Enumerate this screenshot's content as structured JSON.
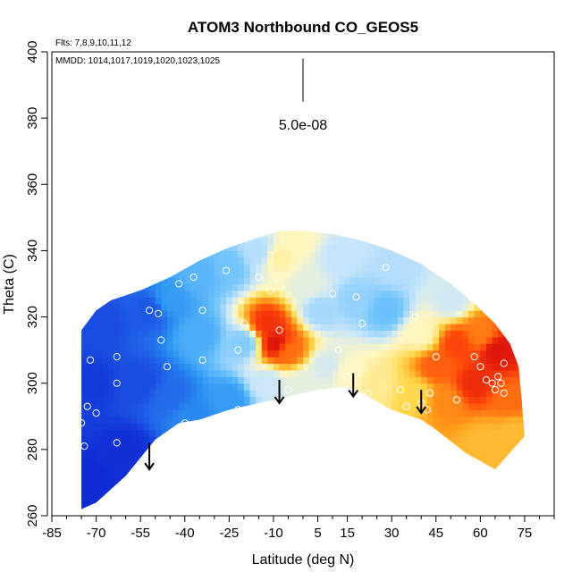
{
  "chart_data": {
    "type": "heatmap",
    "title": "ATOM3 Northbound CO_GEOS5",
    "flights_note": "Flts: 7,8,9,10,11,12",
    "dates_note": "MMDD: 1014,1017,1019,1020,1023,1025",
    "xlabel": "Latitude (deg N)",
    "ylabel": "Theta (C)",
    "xlim": [
      -85,
      85
    ],
    "ylim": [
      260,
      400
    ],
    "xticks": [
      -85,
      -70,
      -55,
      -40,
      -25,
      -10,
      5,
      15,
      30,
      45,
      60,
      75
    ],
    "xtick_labels": [
      "-85",
      "-70",
      "-55",
      "-40",
      "-25",
      "-10",
      "5",
      "15",
      "30",
      "45",
      "60",
      "75"
    ],
    "yticks": [
      260,
      280,
      300,
      320,
      340,
      360,
      380,
      400
    ],
    "ytick_labels": [
      "260",
      "280",
      "300",
      "320",
      "340",
      "360",
      "380",
      "400"
    ],
    "scale_label": "5.0e-08",
    "colormap": [
      "#0b1fcf",
      "#1f5de6",
      "#2b94f2",
      "#6cc2fb",
      "#c8e6fb",
      "#fff7c2",
      "#ffd64a",
      "#ff9a1a",
      "#ff4a0a",
      "#d80a0a"
    ],
    "color_value_range": [
      0,
      1
    ],
    "grid": false,
    "region_top": [
      [
        -75,
        316
      ],
      [
        -70,
        322
      ],
      [
        -65,
        325
      ],
      [
        -55,
        328
      ],
      [
        -45,
        332
      ],
      [
        -35,
        337
      ],
      [
        -25,
        341
      ],
      [
        -15,
        344
      ],
      [
        -8,
        346
      ],
      [
        0,
        346
      ],
      [
        10,
        345
      ],
      [
        20,
        343
      ],
      [
        30,
        340
      ],
      [
        40,
        336
      ],
      [
        50,
        330
      ],
      [
        58,
        324
      ],
      [
        65,
        318
      ],
      [
        70,
        312
      ],
      [
        73,
        305
      ],
      [
        74,
        295
      ],
      [
        75,
        284
      ]
    ],
    "region_bottom": [
      [
        75,
        284
      ],
      [
        70,
        279
      ],
      [
        65,
        274
      ],
      [
        55,
        279
      ],
      [
        45,
        286
      ],
      [
        40,
        289
      ],
      [
        30,
        292
      ],
      [
        20,
        297
      ],
      [
        15,
        299
      ],
      [
        5,
        298
      ],
      [
        -5,
        296
      ],
      [
        -15,
        294
      ],
      [
        -25,
        292
      ],
      [
        -35,
        289
      ],
      [
        -42,
        288
      ],
      [
        -50,
        283
      ],
      [
        -60,
        272
      ],
      [
        -70,
        264
      ],
      [
        -75,
        262
      ]
    ],
    "field_anchors": [
      {
        "lat": -74,
        "theta": 270,
        "value": 0.02
      },
      {
        "lat": -72,
        "theta": 300,
        "value": 0.05
      },
      {
        "lat": -68,
        "theta": 318,
        "value": 0.08
      },
      {
        "lat": -60,
        "theta": 280,
        "value": 0.03
      },
      {
        "lat": -55,
        "theta": 300,
        "value": 0.08
      },
      {
        "lat": -52,
        "theta": 322,
        "value": 0.1
      },
      {
        "lat": -45,
        "theta": 296,
        "value": 0.14
      },
      {
        "lat": -45,
        "theta": 325,
        "value": 0.24
      },
      {
        "lat": -38,
        "theta": 290,
        "value": 0.2
      },
      {
        "lat": -35,
        "theta": 315,
        "value": 0.28
      },
      {
        "lat": -35,
        "theta": 333,
        "value": 0.3
      },
      {
        "lat": -25,
        "theta": 295,
        "value": 0.24
      },
      {
        "lat": -25,
        "theta": 335,
        "value": 0.34
      },
      {
        "lat": -20,
        "theta": 312,
        "value": 0.36
      },
      {
        "lat": -15,
        "theta": 340,
        "value": 0.42
      },
      {
        "lat": -12,
        "theta": 300,
        "value": 0.45
      },
      {
        "lat": -12,
        "theta": 318,
        "value": 0.93
      },
      {
        "lat": -9,
        "theta": 312,
        "value": 0.98
      },
      {
        "lat": -5,
        "theta": 310,
        "value": 0.84
      },
      {
        "lat": -8,
        "theta": 338,
        "value": 0.58
      },
      {
        "lat": -2,
        "theta": 343,
        "value": 0.56
      },
      {
        "lat": 2,
        "theta": 330,
        "value": 0.5
      },
      {
        "lat": 0,
        "theta": 300,
        "value": 0.5
      },
      {
        "lat": 6,
        "theta": 322,
        "value": 0.4
      },
      {
        "lat": 8,
        "theta": 305,
        "value": 0.47
      },
      {
        "lat": 12,
        "theta": 338,
        "value": 0.44
      },
      {
        "lat": 15,
        "theta": 303,
        "value": 0.55
      },
      {
        "lat": 18,
        "theta": 325,
        "value": 0.38
      },
      {
        "lat": 25,
        "theta": 300,
        "value": 0.6
      },
      {
        "lat": 28,
        "theta": 322,
        "value": 0.33
      },
      {
        "lat": 32,
        "theta": 335,
        "value": 0.42
      },
      {
        "lat": 38,
        "theta": 297,
        "value": 0.66
      },
      {
        "lat": 40,
        "theta": 315,
        "value": 0.56
      },
      {
        "lat": 45,
        "theta": 305,
        "value": 0.86
      },
      {
        "lat": 48,
        "theta": 295,
        "value": 0.8
      },
      {
        "lat": 50,
        "theta": 325,
        "value": 0.46
      },
      {
        "lat": 52,
        "theta": 312,
        "value": 0.9
      },
      {
        "lat": 58,
        "theta": 300,
        "value": 0.94
      },
      {
        "lat": 60,
        "theta": 315,
        "value": 0.82
      },
      {
        "lat": 62,
        "theta": 282,
        "value": 0.72
      },
      {
        "lat": 66,
        "theta": 310,
        "value": 0.98
      },
      {
        "lat": 70,
        "theta": 295,
        "value": 0.84
      },
      {
        "lat": 72,
        "theta": 285,
        "value": 0.72
      }
    ],
    "observations": [
      {
        "lat": -75,
        "theta": 288
      },
      {
        "lat": -74,
        "theta": 281
      },
      {
        "lat": -73,
        "theta": 293
      },
      {
        "lat": -72,
        "theta": 307
      },
      {
        "lat": -70,
        "theta": 325
      },
      {
        "lat": -70,
        "theta": 291
      },
      {
        "lat": -63,
        "theta": 282
      },
      {
        "lat": -63,
        "theta": 300
      },
      {
        "lat": -63,
        "theta": 308
      },
      {
        "lat": -52,
        "theta": 322
      },
      {
        "lat": -49,
        "theta": 321
      },
      {
        "lat": -48,
        "theta": 313
      },
      {
        "lat": -46,
        "theta": 305
      },
      {
        "lat": -42,
        "theta": 330
      },
      {
        "lat": -40,
        "theta": 288
      },
      {
        "lat": -37,
        "theta": 332
      },
      {
        "lat": -34,
        "theta": 287
      },
      {
        "lat": -34,
        "theta": 322
      },
      {
        "lat": -34,
        "theta": 307
      },
      {
        "lat": -26,
        "theta": 334
      },
      {
        "lat": -22,
        "theta": 292
      },
      {
        "lat": -22,
        "theta": 310
      },
      {
        "lat": -20,
        "theta": 318
      },
      {
        "lat": -15,
        "theta": 332
      },
      {
        "lat": -11,
        "theta": 328
      },
      {
        "lat": -8,
        "theta": 316
      },
      {
        "lat": -5,
        "theta": 298
      },
      {
        "lat": 10,
        "theta": 327
      },
      {
        "lat": 12,
        "theta": 310
      },
      {
        "lat": 15,
        "theta": 302
      },
      {
        "lat": 18,
        "theta": 326
      },
      {
        "lat": 20,
        "theta": 318
      },
      {
        "lat": 22,
        "theta": 297
      },
      {
        "lat": 28,
        "theta": 335
      },
      {
        "lat": 33,
        "theta": 298
      },
      {
        "lat": 35,
        "theta": 293
      },
      {
        "lat": 38,
        "theta": 320
      },
      {
        "lat": 40,
        "theta": 294
      },
      {
        "lat": 42,
        "theta": 292
      },
      {
        "lat": 43,
        "theta": 297
      },
      {
        "lat": 45,
        "theta": 308
      },
      {
        "lat": 52,
        "theta": 295
      },
      {
        "lat": 58,
        "theta": 308
      },
      {
        "lat": 60,
        "theta": 305
      },
      {
        "lat": 62,
        "theta": 301
      },
      {
        "lat": 64,
        "theta": 300
      },
      {
        "lat": 65,
        "theta": 298
      },
      {
        "lat": 66,
        "theta": 302
      },
      {
        "lat": 67,
        "theta": 300
      },
      {
        "lat": 68,
        "theta": 297
      },
      {
        "lat": 68,
        "theta": 306
      }
    ],
    "arrows": [
      {
        "lat": -52,
        "theta_from": 282,
        "theta_to": 274
      },
      {
        "lat": -8,
        "theta_from": 301,
        "theta_to": 294
      },
      {
        "lat": 17,
        "theta_from": 303,
        "theta_to": 296
      },
      {
        "lat": 40,
        "theta_from": 298,
        "theta_to": 291
      }
    ],
    "scale_bar": {
      "lat": 0,
      "theta_from": 398,
      "theta_to": 385
    }
  }
}
